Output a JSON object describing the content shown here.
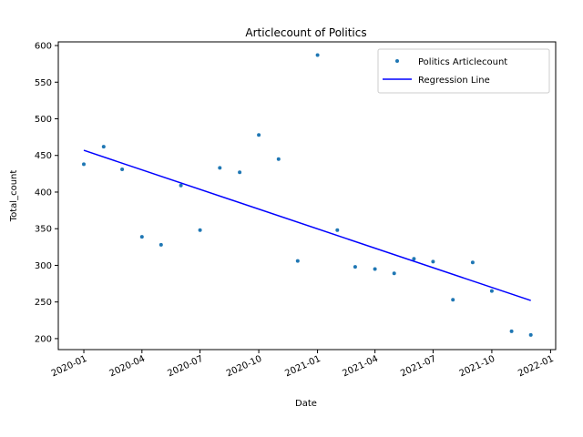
{
  "chart_data": {
    "type": "scatter",
    "title": "Articlecount of Politics",
    "xlabel": "Date",
    "ylabel": "Total_count",
    "xlim": [
      "2019-11-22",
      "2022-01-09"
    ],
    "ylim": [
      185,
      605
    ],
    "x_ticks": [
      "2020-01",
      "2020-04",
      "2020-07",
      "2020-10",
      "2021-01",
      "2021-04",
      "2021-07",
      "2021-10",
      "2022-01"
    ],
    "y_ticks": [
      200,
      250,
      300,
      350,
      400,
      450,
      500,
      550,
      600
    ],
    "grid": false,
    "legend_position": "top-right",
    "series": [
      {
        "name": "Politics Articlecount",
        "kind": "scatter",
        "color": "#1f77b4",
        "x": [
          "2020-01-01",
          "2020-02-01",
          "2020-03-01",
          "2020-04-01",
          "2020-05-01",
          "2020-06-01",
          "2020-07-01",
          "2020-08-01",
          "2020-09-01",
          "2020-10-01",
          "2020-11-01",
          "2020-12-01",
          "2021-01-01",
          "2021-02-01",
          "2021-03-01",
          "2021-04-01",
          "2021-05-01",
          "2021-06-01",
          "2021-07-01",
          "2021-08-01",
          "2021-09-01",
          "2021-10-01",
          "2021-11-01",
          "2021-12-01"
        ],
        "y": [
          438,
          462,
          431,
          339,
          328,
          409,
          348,
          433,
          427,
          478,
          445,
          306,
          587,
          348,
          298,
          295,
          289,
          309,
          305,
          253,
          304,
          265,
          210,
          205
        ]
      },
      {
        "name": "Regression Line",
        "kind": "line",
        "color": "#0000ff",
        "x": [
          "2020-01-01",
          "2021-12-01"
        ],
        "y": [
          457,
          252
        ]
      }
    ]
  }
}
